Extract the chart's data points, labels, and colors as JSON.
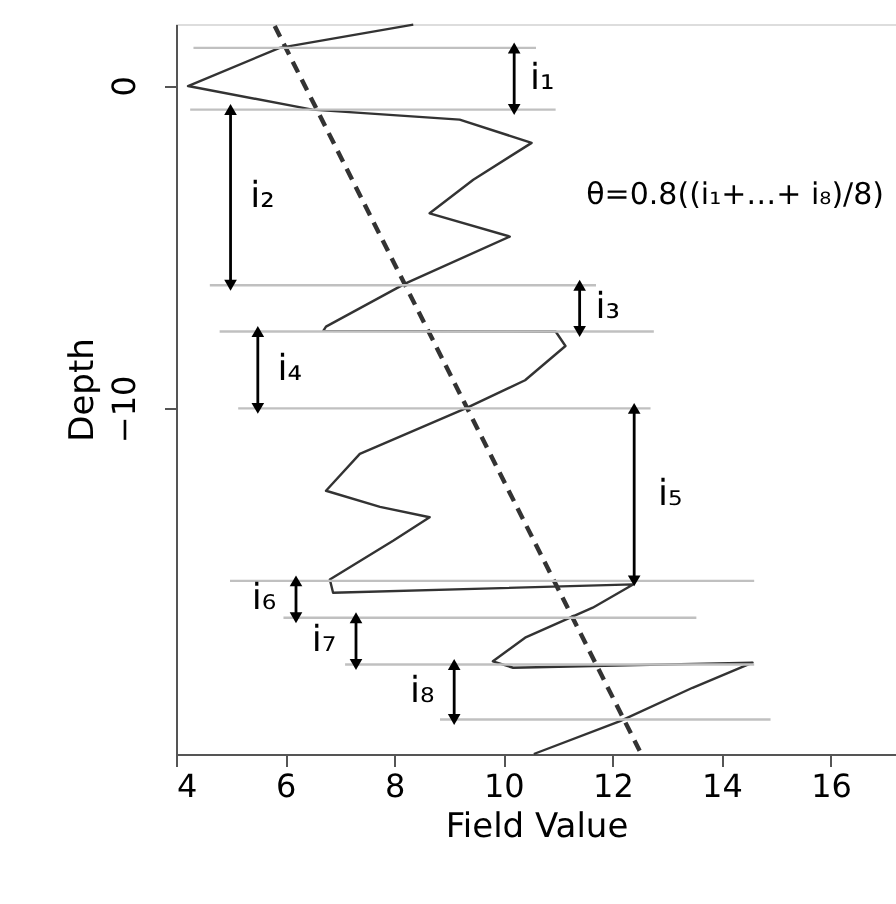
{
  "chart_data": {
    "type": "line",
    "xlabel": "Field Value",
    "ylabel": "Depth",
    "xlim": [
      4,
      17.2
    ],
    "ylim": [
      -20.7,
      1.9
    ],
    "xticks": [
      4,
      6,
      8,
      10,
      12,
      14,
      16
    ],
    "yticks": [
      0,
      -10
    ],
    "grid": false,
    "series": [
      {
        "color": "#333333",
        "line_style": "solid",
        "x": [
          8.35,
          5.9,
          4.22,
          6.5,
          9.2,
          10.52,
          9.45,
          8.65,
          10.12,
          8.21,
          6.75,
          6.7,
          10.96,
          11.14,
          10.4,
          9.31,
          7.37,
          6.75,
          7.74,
          8.65,
          7.98,
          6.82,
          6.88,
          12.38,
          11.64,
          10.4,
          9.81,
          10.18,
          14.57,
          13.47,
          12.13,
          10.56
        ],
        "values": [
          1.88,
          1.16,
          -0.02,
          -0.75,
          -1.06,
          -1.78,
          -2.92,
          -3.96,
          -4.68,
          -6.13,
          -7.47,
          -7.6,
          -7.62,
          -8.07,
          -9.13,
          -10.0,
          -11.41,
          -12.55,
          -13.05,
          -13.37,
          -14.1,
          -15.3,
          -15.71,
          -15.45,
          -16.17,
          -17.1,
          -17.83,
          -18.03,
          -17.87,
          -18.65,
          -19.69,
          -20.7
        ]
      },
      {
        "color": "#333333",
        "line_style": "dashed",
        "x": [
          5.81,
          12.5
        ],
        "values": [
          1.84,
          -20.6
        ]
      },
      {
        "color": "#c0c0c0",
        "line_style": "solid",
        "x": [
          4.32,
          10.6
        ],
        "values": [
          1.16,
          1.16
        ]
      },
      {
        "color": "#c0c0c0",
        "line_style": "solid",
        "x": [
          4.26,
          10.96
        ],
        "values": [
          -0.75,
          -0.75
        ]
      },
      {
        "color": "#c0c0c0",
        "line_style": "solid",
        "x": [
          4.62,
          11.7
        ],
        "values": [
          -6.19,
          -6.19
        ]
      },
      {
        "color": "#c0c0c0",
        "line_style": "solid",
        "x": [
          4.8,
          12.76
        ],
        "values": [
          -7.62,
          -7.62
        ]
      },
      {
        "color": "#c0c0c0",
        "line_style": "solid",
        "x": [
          5.14,
          12.7
        ],
        "values": [
          -10.0,
          -10.0
        ]
      },
      {
        "color": "#c0c0c0",
        "line_style": "solid",
        "x": [
          4.99,
          14.6
        ],
        "values": [
          -15.34,
          -15.34
        ]
      },
      {
        "color": "#c0c0c0",
        "line_style": "solid",
        "x": [
          5.97,
          13.54
        ],
        "values": [
          -16.48,
          -16.48
        ]
      },
      {
        "color": "#c0c0c0",
        "line_style": "solid",
        "x": [
          7.1,
          14.6
        ],
        "values": [
          -17.93,
          -17.93
        ]
      },
      {
        "color": "#c0c0c0",
        "line_style": "solid",
        "x": [
          8.84,
          14.9
        ],
        "values": [
          -19.63,
          -19.63
        ]
      },
      {
        "color": "#000000",
        "marker": "triangle",
        "x": [
          10.2,
          10.2
        ],
        "values": [
          1.16,
          -0.75
        ]
      },
      {
        "color": "#000000",
        "marker": "triangle",
        "x": [
          5.0,
          5.0
        ],
        "values": [
          -0.75,
          -6.19
        ]
      },
      {
        "color": "#000000",
        "marker": "triangle",
        "x": [
          11.4,
          11.4
        ],
        "values": [
          -6.19,
          -7.62
        ]
      },
      {
        "color": "#000000",
        "marker": "triangle",
        "x": [
          5.5,
          5.5
        ],
        "values": [
          -7.62,
          -10.0
        ]
      },
      {
        "color": "#000000",
        "marker": "triangle",
        "x": [
          12.4,
          12.4
        ],
        "values": [
          -10.0,
          -15.34
        ]
      },
      {
        "color": "#000000",
        "marker": "triangle",
        "x": [
          6.2,
          6.2
        ],
        "values": [
          -15.34,
          -16.48
        ]
      },
      {
        "color": "#000000",
        "marker": "triangle",
        "x": [
          7.3,
          7.3
        ],
        "values": [
          -16.48,
          -17.93
        ]
      },
      {
        "color": "#000000",
        "marker": "triangle",
        "x": [
          9.1,
          9.1
        ],
        "values": [
          -17.93,
          -19.63
        ]
      }
    ],
    "annotations": [
      "i₁",
      "i₂",
      "i₃",
      "i₄",
      "i₅",
      "i₆",
      "i₇",
      "i₈",
      "θ=0.8((i₁+…+ i₈)/8)"
    ]
  }
}
